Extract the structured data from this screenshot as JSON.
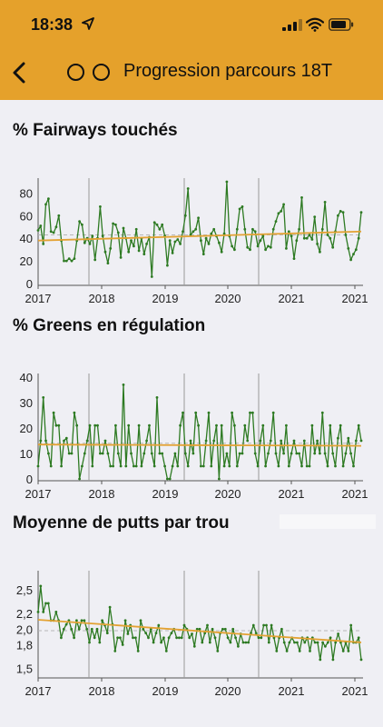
{
  "status": {
    "time": "18:38"
  },
  "nav": {
    "title": "Progression parcours 18T"
  },
  "charts": [
    {
      "title": "% Fairways touchés",
      "chart_data": {
        "type": "line",
        "x_tick_labels": [
          "2017",
          "2018",
          "2019",
          "2020",
          "2021",
          "2021"
        ],
        "y_ticks": [
          0,
          20,
          40,
          60,
          80
        ],
        "ylim": [
          0,
          90
        ],
        "colors": {
          "series": "#2d7a22",
          "trend": "#e3a233",
          "mean": "#b7b7b7"
        },
        "grid": false,
        "mean": 43,
        "trend": [
          38,
          46
        ],
        "series": [
          {
            "values": [
              47,
              51,
              35,
              70,
              75,
              46,
              45,
              50,
              60,
              38,
              20,
              20,
              22,
              20,
              22,
              38,
              55,
              52,
              36,
              40,
              35,
              42,
              21,
              40,
              68,
              42,
              28,
              18,
              31,
              53,
              52,
              45,
              23,
              49,
              40,
              28,
              38,
              33,
              48,
              29,
              40,
              26,
              35,
              41,
              6,
              54,
              52,
              48,
              52,
              42,
              16,
              38,
              27,
              37,
              39,
              35,
              46,
              60,
              84,
              43,
              46,
              48,
              58,
              38,
              26,
              40,
              35,
              44,
              48,
              42,
              36,
              28,
              44,
              90,
              42,
              33,
              30,
              48,
              66,
              68,
              48,
              32,
              30,
              48,
              46,
              33,
              38,
              42,
              30,
              33,
              32,
              48,
              55,
              62,
              64,
              70,
              31,
              46,
              42,
              22,
              38,
              48,
              76,
              40,
              40,
              43,
              39,
              59,
              35,
              28,
              48,
              72,
              43,
              40,
              32,
              46,
              60,
              64,
              63,
              43,
              31,
              21,
              26,
              30,
              40,
              63
            ]
          }
        ]
      }
    },
    {
      "title": "% Greens en régulation",
      "chart_data": {
        "type": "line",
        "x_tick_labels": [
          "2017",
          "2018",
          "2019",
          "2020",
          "2021",
          "2021"
        ],
        "y_ticks": [
          0,
          10,
          20,
          30,
          40
        ],
        "ylim": [
          0,
          40
        ],
        "colors": {
          "series": "#2d7a22",
          "trend": "#e3a233",
          "mean": "#b7b7b7"
        },
        "grid": false,
        "mean": 14,
        "trend": [
          13.5,
          13
        ],
        "series": [
          {
            "values": [
              5,
              15,
              32,
              15,
              10,
              5,
              26,
              21,
              21,
              5,
              15,
              16,
              10,
              10,
              26,
              21,
              0,
              5,
              10,
              15,
              21,
              5,
              21,
              21,
              10,
              10,
              15,
              10,
              5,
              5,
              21,
              10,
              5,
              37,
              5,
              21,
              10,
              5,
              5,
              21,
              5,
              10,
              15,
              21,
              10,
              5,
              32,
              10,
              10,
              5,
              0,
              0,
              5,
              10,
              5,
              21,
              26,
              10,
              5,
              15,
              10,
              26,
              21,
              5,
              5,
              15,
              26,
              5,
              15,
              21,
              0,
              21,
              5,
              10,
              5,
              26,
              21,
              5,
              10,
              10,
              21,
              15,
              26,
              26,
              10,
              5,
              15,
              21,
              5,
              10,
              15,
              26,
              10,
              5,
              15,
              10,
              21,
              5,
              10,
              15,
              10,
              10,
              5,
              15,
              5,
              5,
              21,
              10,
              15,
              10,
              26,
              10,
              5,
              21,
              10,
              5,
              16,
              21,
              5,
              10,
              16,
              10,
              5,
              15,
              21,
              15
            ]
          }
        ]
      }
    },
    {
      "title": "Moyenne de putts par trou",
      "chart_data": {
        "type": "line",
        "x_tick_labels": [
          "2017",
          "2018",
          "2019",
          "2020",
          "2021",
          "2021"
        ],
        "y_ticks": [
          "1,5",
          "1,8",
          "2,0",
          "2,2",
          "2,5"
        ],
        "ylim": [
          1.4,
          2.7
        ],
        "colors": {
          "series": "#2d7a22",
          "trend": "#e3a233",
          "mean": "#b7b7b7"
        },
        "grid": false,
        "mean": 1.98,
        "trend": [
          2.12,
          1.83
        ],
        "series": [
          {
            "values": [
              2.22,
              2.55,
              2.22,
              2.33,
              2.33,
              2.11,
              2.11,
              2.22,
              2.11,
              1.89,
              2.0,
              2.06,
              2.11,
              2.0,
              1.89,
              2.11,
              2.0,
              2.11,
              2.11,
              2.0,
              1.83,
              2.0,
              1.89,
              2.0,
              1.83,
              2.11,
              2.05,
              1.95,
              2.28,
              2.06,
              1.72,
              1.89,
              1.89,
              1.8,
              2.11,
              1.94,
              2.05,
              1.89,
              1.89,
              1.72,
              2.11,
              2.0,
              1.95,
              1.89,
              2.0,
              1.83,
              1.95,
              2.05,
              1.83,
              1.89,
              1.72,
              1.89,
              1.95,
              2.0,
              1.89,
              1.89,
              1.89,
              2.05,
              2.0,
              1.89,
              1.94,
              1.78,
              2.0,
              2.0,
              1.83,
              1.95,
              2.05,
              1.83,
              2.0,
              1.89,
              1.72,
              1.95,
              2.0,
              2.0,
              1.89,
              1.83,
              2.0,
              1.89,
              1.78,
              1.94,
              1.83,
              1.83,
              1.83,
              1.95,
              2.05,
              1.95,
              1.89,
              1.89,
              2.05,
              2.05,
              1.83,
              2.05,
              1.89,
              1.72,
              1.89,
              2.0,
              1.83,
              1.72,
              1.83,
              1.89,
              1.83,
              1.83,
              1.72,
              1.89,
              1.83,
              1.89,
              1.72,
              1.89,
              1.83,
              1.83,
              1.61,
              1.83,
              1.78,
              1.83,
              1.89,
              1.61,
              1.83,
              1.94,
              1.83,
              1.72,
              1.83,
              1.72,
              2.05,
              1.83,
              1.83,
              1.89,
              1.61
            ]
          }
        ]
      }
    }
  ]
}
